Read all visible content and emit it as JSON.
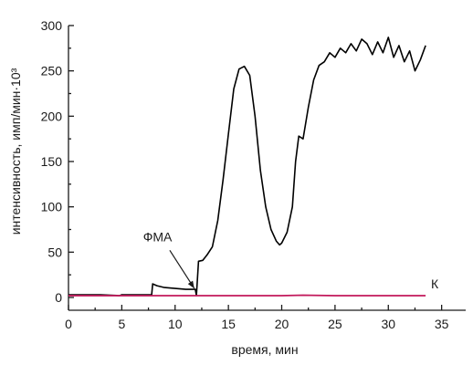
{
  "chart_data": {
    "type": "line",
    "xlabel": "время, мин",
    "ylabel": "интенсивность, имп/мин·10³",
    "xlim": [
      0,
      37
    ],
    "ylim": [
      0,
      300
    ],
    "x_ticks": [
      0,
      5,
      10,
      15,
      20,
      25,
      30,
      35
    ],
    "y_ticks": [
      0,
      50,
      100,
      150,
      200,
      250,
      300
    ],
    "grid": false,
    "series": [
      {
        "color": "#000000",
        "points": [
          [
            0,
            3
          ],
          [
            1,
            3
          ],
          [
            2,
            3
          ],
          [
            3,
            3
          ],
          [
            4,
            2.5
          ],
          [
            4.8,
            2
          ],
          [
            5,
            3
          ],
          [
            6,
            3
          ],
          [
            7.8,
            3
          ],
          [
            7.9,
            15
          ],
          [
            8.3,
            13
          ],
          [
            9,
            11
          ],
          [
            10,
            10
          ],
          [
            11,
            9
          ],
          [
            11.9,
            9
          ],
          [
            12,
            2
          ],
          [
            12.2,
            40
          ],
          [
            12.6,
            41
          ],
          [
            13,
            47
          ],
          [
            13.5,
            56
          ],
          [
            14,
            85
          ],
          [
            14.5,
            130
          ],
          [
            15,
            180
          ],
          [
            15.5,
            230
          ],
          [
            16,
            252
          ],
          [
            16.5,
            255
          ],
          [
            17,
            245
          ],
          [
            17.5,
            200
          ],
          [
            18,
            140
          ],
          [
            18.5,
            100
          ],
          [
            19,
            75
          ],
          [
            19.5,
            62
          ],
          [
            19.8,
            58
          ],
          [
            20,
            60
          ],
          [
            20.5,
            72
          ],
          [
            21,
            100
          ],
          [
            21.3,
            150
          ],
          [
            21.6,
            178
          ],
          [
            22,
            175
          ],
          [
            22.5,
            210
          ],
          [
            23,
            240
          ],
          [
            23.5,
            256
          ],
          [
            24,
            260
          ],
          [
            24.5,
            270
          ],
          [
            25,
            265
          ],
          [
            25.5,
            275
          ],
          [
            26,
            270
          ],
          [
            26.5,
            280
          ],
          [
            27,
            272
          ],
          [
            27.5,
            285
          ],
          [
            28,
            280
          ],
          [
            28.5,
            268
          ],
          [
            29,
            282
          ],
          [
            29.5,
            270
          ],
          [
            30,
            287
          ],
          [
            30.5,
            265
          ],
          [
            31,
            278
          ],
          [
            31.5,
            260
          ],
          [
            32,
            272
          ],
          [
            32.5,
            250
          ],
          [
            33,
            262
          ],
          [
            33.5,
            278
          ]
        ]
      },
      {
        "color": "#c2185b",
        "points": [
          [
            0,
            2
          ],
          [
            5,
            2
          ],
          [
            10,
            2
          ],
          [
            15,
            2
          ],
          [
            20,
            2
          ],
          [
            22,
            2.5
          ],
          [
            25,
            2
          ],
          [
            30,
            2
          ],
          [
            33.5,
            2
          ]
        ]
      }
    ],
    "annotations": [
      {
        "text": "ФМА",
        "x": 7.0,
        "y": 62
      },
      {
        "text": "К",
        "x": 34.0,
        "y": 10
      }
    ],
    "arrow": {
      "from": [
        9.5,
        52
      ],
      "to": [
        11.8,
        10
      ]
    }
  }
}
